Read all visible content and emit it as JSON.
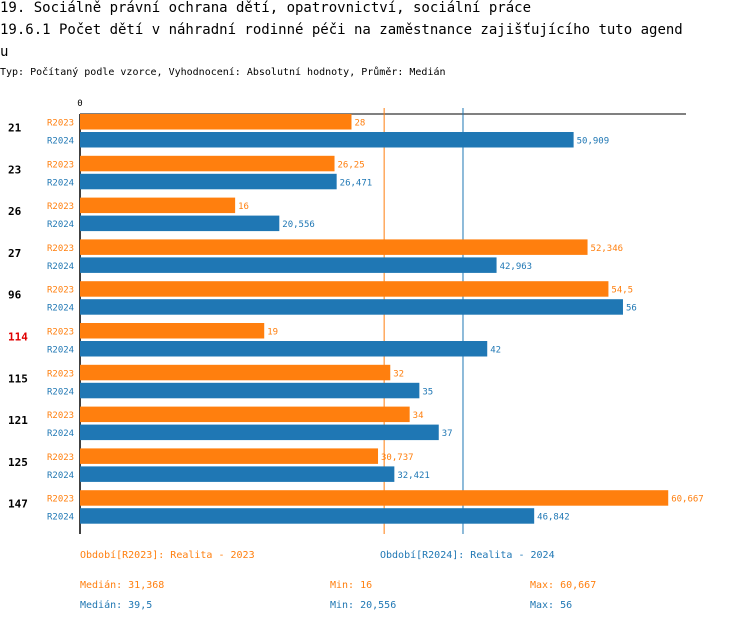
{
  "header": {
    "title_line1": "19. Sociálně právní ochrana dětí, opatrovnictví, sociální práce",
    "title_line2": "19.6.1 Počet dětí v náhradní rodinné péči na zaměstnance zajišťujícího tuto agend",
    "title_line3": "u",
    "subtitle": "Typ: Počítaný podle vzorce, Vyhodnocení: Absolutní hodnoty, Průměr: Medián"
  },
  "chart_data": {
    "type": "bar",
    "orientation": "horizontal",
    "axis_zero_label": "0",
    "xlim": [
      0,
      62.5
    ],
    "categories": [
      "21",
      "23",
      "26",
      "27",
      "96",
      "114",
      "115",
      "121",
      "125",
      "147"
    ],
    "highlight_category": "114",
    "series": [
      {
        "name": "R2023",
        "color": "#ff7f0e",
        "values": [
          28,
          26.25,
          16,
          52.346,
          54.5,
          19,
          32,
          34,
          30.737,
          60.667
        ],
        "labels": [
          "28",
          "26,25",
          "16",
          "52,346",
          "54,5",
          "19",
          "32",
          "34",
          "30,737",
          "60,667"
        ],
        "median": 31.368
      },
      {
        "name": "R2024",
        "color": "#1f77b4",
        "values": [
          50.909,
          26.471,
          20.556,
          42.963,
          56,
          42,
          35,
          37,
          32.421,
          46.842
        ],
        "labels": [
          "50,909",
          "26,471",
          "20,556",
          "42,963",
          "56",
          "42",
          "35",
          "37",
          "32,421",
          "46,842"
        ],
        "median": 39.5
      }
    ]
  },
  "legend": {
    "r2023": "Období[R2023]: Realita - 2023",
    "r2024": "Období[R2024]: Realita - 2024"
  },
  "stats": {
    "r2023": {
      "median": "Medián: 31,368",
      "min": "Min: 16",
      "max": "Max: 60,667"
    },
    "r2024": {
      "median": "Medián: 39,5",
      "min": "Min: 20,556",
      "max": "Max: 56"
    }
  }
}
